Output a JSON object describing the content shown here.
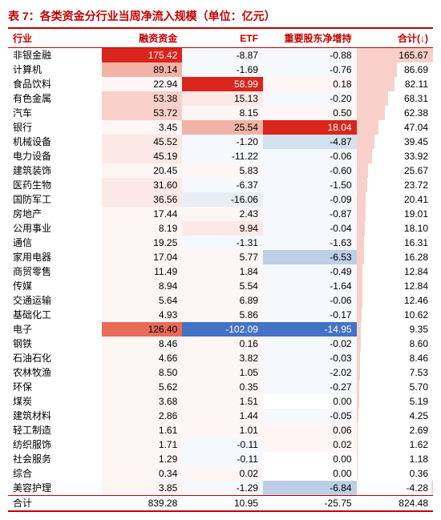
{
  "title": "表 7：各类资金分行业当周净流入规模（单位：亿元）",
  "title_color": "#c00000",
  "columns": [
    "行业",
    "融资资金",
    "ETF",
    "重要股东净增持",
    "合计(↓)"
  ],
  "col_widths_pct": [
    22,
    19,
    19,
    22,
    18
  ],
  "heat": {
    "pos_colors": [
      "#fef6f5",
      "#fce9e6",
      "#f8d0c9",
      "#f3b2a6",
      "#ee9081",
      "#e86a59",
      "#da251c"
    ],
    "neg_colors": [
      "#f5f8fc",
      "#e8eef7",
      "#d5e0ef",
      "#bccfe7",
      "#9fb9db",
      "#7c9ecb",
      "#4472c4"
    ],
    "neutral": "#ffffff"
  },
  "total_bar_color": "#f8d0c9",
  "rows": [
    {
      "name": "非银金融",
      "v": [
        175.42,
        -8.87,
        -0.88,
        165.67
      ]
    },
    {
      "name": "计算机",
      "v": [
        89.14,
        -1.69,
        -0.76,
        86.69
      ]
    },
    {
      "name": "食品饮料",
      "v": [
        22.94,
        58.99,
        0.18,
        82.11
      ]
    },
    {
      "name": "有色金属",
      "v": [
        53.38,
        15.13,
        -0.2,
        68.31
      ]
    },
    {
      "name": "汽车",
      "v": [
        53.72,
        8.15,
        0.5,
        62.38
      ]
    },
    {
      "name": "银行",
      "v": [
        3.45,
        25.54,
        18.04,
        47.04
      ]
    },
    {
      "name": "机械设备",
      "v": [
        45.52,
        -1.2,
        -4.87,
        39.45
      ]
    },
    {
      "name": "电力设备",
      "v": [
        45.19,
        -11.22,
        -0.06,
        33.92
      ]
    },
    {
      "name": "建筑装饰",
      "v": [
        20.45,
        5.83,
        -0.6,
        25.67
      ]
    },
    {
      "name": "医药生物",
      "v": [
        31.6,
        -6.37,
        -1.5,
        23.72
      ]
    },
    {
      "name": "国防军工",
      "v": [
        36.56,
        -16.06,
        -0.09,
        20.41
      ]
    },
    {
      "name": "房地产",
      "v": [
        17.44,
        2.43,
        -0.87,
        19.01
      ]
    },
    {
      "name": "公用事业",
      "v": [
        8.19,
        9.94,
        -0.04,
        18.1
      ]
    },
    {
      "name": "通信",
      "v": [
        19.25,
        -1.31,
        -1.63,
        16.31
      ]
    },
    {
      "name": "家用电器",
      "v": [
        17.04,
        5.77,
        -6.53,
        16.28
      ]
    },
    {
      "name": "商贸零售",
      "v": [
        11.49,
        1.84,
        -0.49,
        12.84
      ]
    },
    {
      "name": "传媒",
      "v": [
        8.94,
        5.54,
        -1.64,
        12.84
      ]
    },
    {
      "name": "交通运输",
      "v": [
        5.64,
        6.89,
        -0.06,
        12.46
      ]
    },
    {
      "name": "基础化工",
      "v": [
        4.93,
        5.86,
        -0.17,
        10.62
      ]
    },
    {
      "name": "电子",
      "v": [
        126.4,
        -102.09,
        -14.95,
        9.35
      ]
    },
    {
      "name": "钢铁",
      "v": [
        8.46,
        0.16,
        -0.02,
        8.6
      ]
    },
    {
      "name": "石油石化",
      "v": [
        4.66,
        3.82,
        -0.03,
        8.46
      ]
    },
    {
      "name": "农林牧渔",
      "v": [
        8.5,
        1.05,
        -2.02,
        7.53
      ]
    },
    {
      "name": "环保",
      "v": [
        5.62,
        0.35,
        -0.27,
        5.7
      ]
    },
    {
      "name": "煤炭",
      "v": [
        3.68,
        1.51,
        0.0,
        5.19
      ]
    },
    {
      "name": "建筑材料",
      "v": [
        2.86,
        1.44,
        -0.05,
        4.25
      ]
    },
    {
      "name": "轻工制造",
      "v": [
        1.61,
        1.01,
        0.06,
        2.69
      ]
    },
    {
      "name": "纺织服饰",
      "v": [
        1.71,
        -0.11,
        0.02,
        1.62
      ]
    },
    {
      "name": "社会服务",
      "v": [
        1.29,
        -0.11,
        0.0,
        1.18
      ]
    },
    {
      "name": "综合",
      "v": [
        0.34,
        0.02,
        0.0,
        0.36
      ]
    },
    {
      "name": "美容护理",
      "v": [
        3.85,
        -1.29,
        -6.84,
        -4.28
      ]
    }
  ],
  "total": {
    "name": "合计",
    "v": [
      839.28,
      10.95,
      -25.75,
      824.48
    ]
  },
  "col_ranges": [
    {
      "max": 175.42,
      "min": 0.34
    },
    {
      "max": 58.99,
      "min": -102.09
    },
    {
      "max": 18.04,
      "min": -14.95
    },
    {
      "max": 165.67,
      "min": -4.28
    }
  ]
}
